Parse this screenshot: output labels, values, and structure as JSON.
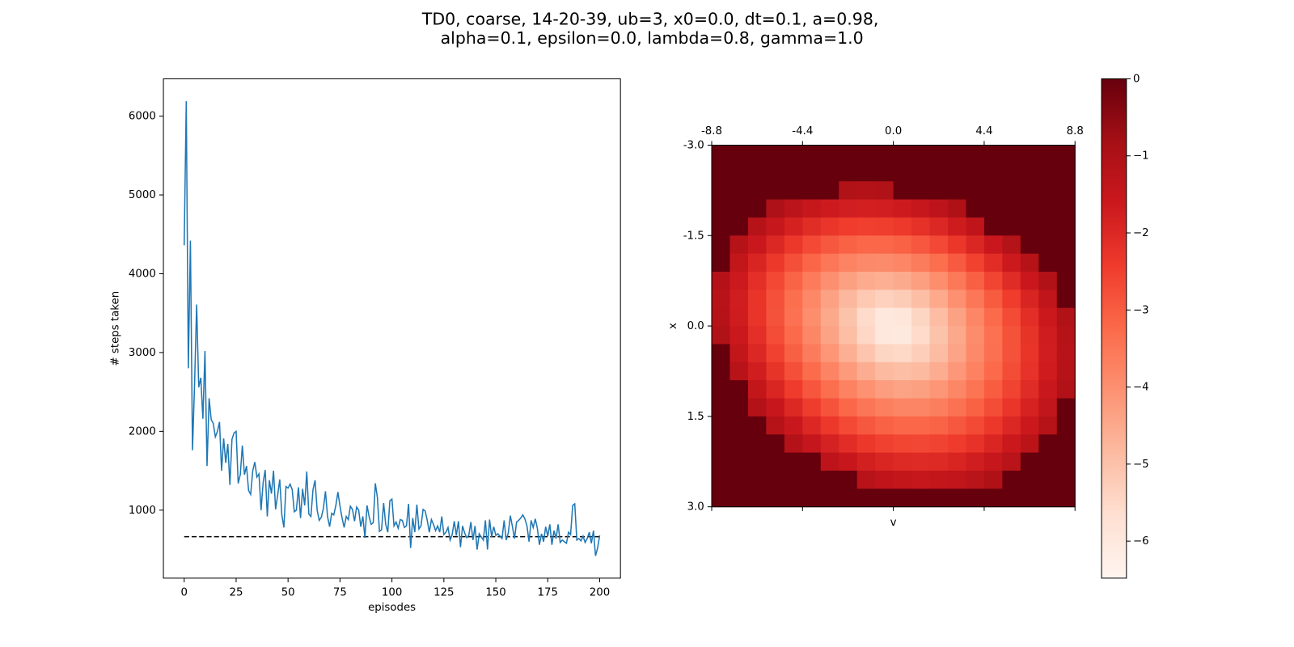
{
  "title": [
    "TD0, coarse, 14-20-39, ub=3, x0=0.0, dt=0.1, a=0.98,",
    "alpha=0.1, epsilon=0.0, lambda=0.8, gamma=1.0"
  ],
  "chart_data": [
    {
      "type": "line",
      "xlabel": "episodes",
      "ylabel": "# steps taken",
      "color": "#1f77b4",
      "xlim": [
        -10,
        210
      ],
      "ylim": [
        137,
        6474
      ],
      "xticks": [
        0,
        25,
        50,
        75,
        100,
        125,
        150,
        175,
        200
      ],
      "yticks": [
        1000,
        2000,
        3000,
        4000,
        5000,
        6000
      ],
      "hline": {
        "value": 663,
        "x": [
          0,
          200
        ],
        "color": "#000000",
        "style": "dashed"
      },
      "x": [
        0,
        1,
        2,
        3,
        4,
        5,
        6,
        7,
        8,
        9,
        10,
        11,
        12,
        13,
        14,
        15,
        16,
        17,
        18,
        19,
        20,
        21,
        22,
        23,
        24,
        25,
        26,
        27,
        28,
        29,
        30,
        31,
        32,
        33,
        34,
        35,
        36,
        37,
        38,
        39,
        40,
        41,
        42,
        43,
        44,
        45,
        46,
        47,
        48,
        49,
        50,
        51,
        52,
        53,
        54,
        55,
        56,
        57,
        58,
        59,
        60,
        61,
        62,
        63,
        64,
        65,
        66,
        67,
        68,
        69,
        70,
        71,
        72,
        73,
        74,
        75,
        76,
        77,
        78,
        79,
        80,
        81,
        82,
        83,
        84,
        85,
        86,
        87,
        88,
        89,
        90,
        91,
        92,
        93,
        94,
        95,
        96,
        97,
        98,
        99,
        100,
        101,
        102,
        103,
        104,
        105,
        106,
        107,
        108,
        109,
        110,
        111,
        112,
        113,
        114,
        115,
        116,
        117,
        118,
        119,
        120,
        121,
        122,
        123,
        124,
        125,
        126,
        127,
        128,
        129,
        130,
        131,
        132,
        133,
        134,
        135,
        136,
        137,
        138,
        139,
        140,
        141,
        142,
        143,
        144,
        145,
        146,
        147,
        148,
        149,
        150,
        151,
        152,
        153,
        154,
        155,
        156,
        157,
        158,
        159,
        160,
        161,
        162,
        163,
        164,
        165,
        166,
        167,
        168,
        169,
        170,
        171,
        172,
        173,
        174,
        175,
        176,
        177,
        178,
        179,
        180,
        181,
        182,
        183,
        184,
        185,
        186,
        187,
        188,
        189,
        190,
        191,
        192,
        193,
        194,
        195,
        196,
        197,
        198,
        199,
        200
      ],
      "y": [
        4360,
        6190,
        2800,
        4420,
        1760,
        2600,
        3610,
        2560,
        2680,
        2160,
        3020,
        1560,
        2420,
        2150,
        2100,
        1930,
        2000,
        2120,
        1500,
        1910,
        1600,
        1840,
        1320,
        1900,
        1980,
        2000,
        1340,
        1450,
        1820,
        1450,
        1560,
        1250,
        1200,
        1500,
        1610,
        1420,
        1460,
        1000,
        1350,
        1510,
        920,
        1380,
        1210,
        1500,
        1010,
        1190,
        1390,
        940,
        780,
        1300,
        1280,
        1330,
        1260,
        980,
        1000,
        1290,
        900,
        1270,
        1060,
        1490,
        950,
        920,
        1260,
        1380,
        1000,
        870,
        910,
        1020,
        1240,
        920,
        790,
        960,
        940,
        1060,
        1230,
        1050,
        900,
        780,
        920,
        880,
        1050,
        1010,
        860,
        1040,
        1000,
        790,
        920,
        650,
        1060,
        920,
        820,
        840,
        1340,
        1160,
        730,
        750,
        1090,
        820,
        720,
        1120,
        1140,
        800,
        850,
        770,
        880,
        870,
        780,
        800,
        1080,
        520,
        900,
        720,
        1070,
        760,
        800,
        1010,
        990,
        870,
        720,
        880,
        820,
        740,
        800,
        720,
        920,
        690,
        720,
        780,
        620,
        690,
        860,
        680,
        860,
        530,
        800,
        710,
        650,
        680,
        850,
        620,
        800,
        500,
        700,
        660,
        620,
        870,
        500,
        880,
        660,
        790,
        680,
        700,
        670,
        640,
        870,
        620,
        710,
        930,
        790,
        640,
        850,
        870,
        900,
        940,
        890,
        800,
        600,
        870,
        780,
        890,
        770,
        560,
        700,
        600,
        790,
        670,
        820,
        560,
        740,
        640,
        820,
        590,
        620,
        600,
        580,
        720,
        690,
        1060,
        1080,
        620,
        640,
        610,
        670,
        590,
        640,
        720,
        580,
        740,
        420,
        520,
        680
      ]
    },
    {
      "type": "heatmap",
      "xlabel": "v",
      "ylabel": "x",
      "origin": "upper",
      "xlim": [
        -8.8,
        8.8
      ],
      "ylim": [
        -3.0,
        3.0
      ],
      "xticks": [
        -8.8,
        -4.4,
        {
          "value": 0,
          "label": "0.0"
        },
        4.4,
        8.8
      ],
      "yticks": [
        {
          "value": -3,
          "label": "-3.0"
        },
        -1.5,
        {
          "value": 0,
          "label": "0.0"
        },
        1.5,
        {
          "value": 3,
          "label": "3.0"
        }
      ],
      "colormap": [
        "#fff5f0",
        "#fee0d2",
        "#fcbba1",
        "#fc9272",
        "#fb6a4a",
        "#ef3b2c",
        "#cb181d",
        "#a50f15",
        "#67000d"
      ],
      "zlim": [
        -6.48,
        0
      ],
      "zticks": [
        0,
        {
          "value": -1,
          "label": "−1"
        },
        {
          "value": -2,
          "label": "−2"
        },
        {
          "value": -3,
          "label": "−3"
        },
        {
          "value": -4,
          "label": "−4"
        },
        {
          "value": -5,
          "label": "−5"
        },
        {
          "value": -6,
          "label": "−6"
        }
      ],
      "z": [
        [
          0,
          0,
          0,
          0,
          0,
          0,
          0,
          0,
          0,
          0,
          0,
          0,
          0,
          0,
          0,
          0,
          0,
          0,
          0,
          0
        ],
        [
          0,
          0,
          0,
          0,
          0,
          0,
          0,
          0,
          0,
          0,
          0,
          0,
          0,
          0,
          0,
          0,
          0,
          0,
          0,
          0
        ],
        [
          0,
          0,
          0,
          0,
          0,
          0,
          0,
          -1.06,
          -1.08,
          -1.04,
          0,
          0,
          0,
          0,
          0,
          0,
          0,
          0,
          0,
          0
        ],
        [
          0,
          0,
          0,
          -1.01,
          -1.28,
          -1.5,
          -1.66,
          -1.76,
          -1.79,
          -1.76,
          -1.66,
          -1.5,
          -1.29,
          -1.03,
          0,
          0,
          0,
          0,
          0,
          0
        ],
        [
          0,
          0,
          -1.17,
          -1.52,
          -1.84,
          -2.1,
          -2.31,
          -2.44,
          -2.5,
          -2.48,
          -2.38,
          -2.21,
          -1.98,
          -1.69,
          -1.36,
          0,
          0,
          0,
          0,
          0
        ],
        [
          0,
          -1.15,
          -1.58,
          -1.99,
          -2.35,
          -2.67,
          -2.93,
          -3.11,
          -3.2,
          -3.2,
          -3.1,
          -2.91,
          -2.66,
          -2.34,
          -1.97,
          -1.57,
          -1.14,
          0,
          0,
          0
        ],
        [
          0,
          -1.44,
          -1.91,
          -2.37,
          -2.79,
          -3.17,
          -3.5,
          -3.74,
          -3.88,
          -3.91,
          -3.81,
          -3.61,
          -3.32,
          -2.96,
          -2.55,
          -2.11,
          -1.64,
          -1.16,
          0,
          0
        ],
        [
          -1.12,
          -1.64,
          -2.15,
          -2.65,
          -3.13,
          -3.58,
          -3.99,
          -4.33,
          -4.55,
          -4.62,
          -4.53,
          -4.29,
          -3.94,
          -3.53,
          -3.07,
          -2.59,
          -2.09,
          -1.57,
          -1.05,
          0
        ],
        [
          -1.19,
          -1.73,
          -2.27,
          -2.81,
          -3.34,
          -3.85,
          -4.34,
          -4.8,
          -5.16,
          -5.34,
          -5.23,
          -4.92,
          -4.5,
          -4.01,
          -3.51,
          -2.98,
          -2.45,
          -1.91,
          -1.37,
          0
        ],
        [
          -1.16,
          -1.72,
          -2.27,
          -2.83,
          -3.38,
          -3.94,
          -4.48,
          -5.03,
          -5.55,
          -5.98,
          -5.91,
          -5.43,
          -4.91,
          -4.36,
          -3.81,
          -3.26,
          -2.7,
          -2.14,
          -1.59,
          -1.04
        ],
        [
          -1.05,
          -1.61,
          -2.16,
          -2.72,
          -3.27,
          -3.83,
          -4.38,
          -4.93,
          -5.47,
          -5.96,
          -6.03,
          -5.56,
          -5.03,
          -4.48,
          -3.93,
          -3.38,
          -2.82,
          -2.26,
          -1.71,
          -1.15
        ],
        [
          0,
          -1.44,
          -1.98,
          -2.53,
          -3.07,
          -3.6,
          -4.12,
          -4.62,
          -5.08,
          -5.42,
          -5.51,
          -5.29,
          -4.89,
          -4.41,
          -3.89,
          -3.37,
          -2.83,
          -2.29,
          -1.74,
          -1.19
        ],
        [
          0,
          -1.21,
          -1.73,
          -2.26,
          -2.78,
          -3.28,
          -3.76,
          -4.21,
          -4.59,
          -4.86,
          -4.95,
          -4.84,
          -4.57,
          -4.17,
          -3.73,
          -3.25,
          -2.74,
          -2.23,
          -1.7,
          -1.16
        ],
        [
          0,
          0,
          -1.43,
          -1.94,
          -2.43,
          -2.89,
          -3.33,
          -3.73,
          -4.05,
          -4.27,
          -4.37,
          -4.32,
          -4.13,
          -3.83,
          -3.45,
          -3.02,
          -2.56,
          -2.08,
          -1.58,
          -1.07
        ],
        [
          0,
          0,
          -1.09,
          -1.56,
          -2.02,
          -2.46,
          -2.85,
          -3.21,
          -3.49,
          -3.69,
          -3.79,
          -3.78,
          -3.64,
          -3.41,
          -3.1,
          -2.73,
          -2.31,
          -1.86,
          -1.4,
          0
        ],
        [
          0,
          0,
          0,
          -1.15,
          -1.58,
          -1.98,
          -2.35,
          -2.67,
          -2.93,
          -3.11,
          -3.21,
          -3.21,
          -3.12,
          -2.93,
          -2.68,
          -2.36,
          -1.99,
          -1.59,
          -1.16,
          0
        ],
        [
          0,
          0,
          0,
          0,
          -1.11,
          -1.48,
          -1.82,
          -2.11,
          -2.35,
          -2.52,
          -2.62,
          -2.64,
          -2.57,
          -2.43,
          -2.22,
          -1.95,
          -1.62,
          -1.26,
          0,
          0
        ],
        [
          0,
          0,
          0,
          0,
          0,
          0,
          -1.29,
          -1.56,
          -1.78,
          -1.94,
          -2.04,
          -2.07,
          -2.03,
          -1.91,
          -1.73,
          -1.5,
          -1.22,
          0,
          0,
          0
        ],
        [
          0,
          0,
          0,
          0,
          0,
          0,
          0,
          0,
          -1.2,
          -1.36,
          -1.45,
          -1.49,
          -1.46,
          -1.37,
          -1.23,
          -1.03,
          0,
          0,
          0,
          0
        ],
        [
          0,
          0,
          0,
          0,
          0,
          0,
          0,
          0,
          0,
          0,
          0,
          0,
          0,
          0,
          0,
          0,
          0,
          0,
          0,
          0
        ]
      ]
    }
  ]
}
